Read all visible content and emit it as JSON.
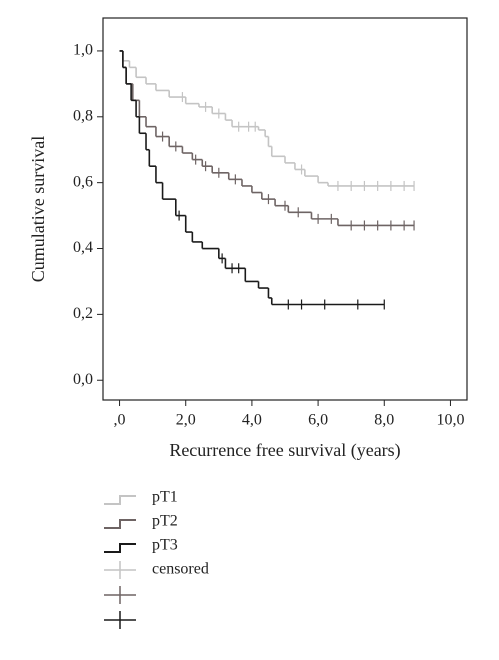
{
  "chart_data": {
    "type": "step",
    "x_label": "Recurrence free survival (years)",
    "y_label": "Cumulative survival",
    "xlim": [
      -0.5,
      10.5
    ],
    "ylim": [
      -0.06,
      1.1
    ],
    "xticks": [
      {
        "value": 0,
        "label": ",0"
      },
      {
        "value": 2,
        "label": "2,0"
      },
      {
        "value": 4,
        "label": "4,0"
      },
      {
        "value": 6,
        "label": "6,0"
      },
      {
        "value": 8,
        "label": "8,0"
      },
      {
        "value": 10,
        "label": "10,0"
      }
    ],
    "yticks": [
      {
        "value": 0,
        "label": "0,0"
      },
      {
        "value": 0.2,
        "label": "0,2"
      },
      {
        "value": 0.4,
        "label": "0,4"
      },
      {
        "value": 0.6,
        "label": "0,6"
      },
      {
        "value": 0.8,
        "label": "0,8"
      },
      {
        "value": 1,
        "label": "1,0"
      }
    ],
    "censored_label": "censored",
    "series": [
      {
        "name": "pT1",
        "color": "#c4c4c4",
        "x": [
          0,
          0.1,
          0.3,
          0.5,
          0.8,
          1.1,
          1.5,
          2.0,
          2.4,
          2.8,
          3.2,
          3.4,
          4.2,
          4.4,
          4.5,
          4.6,
          5.0,
          5.3,
          5.6,
          6.0,
          6.3,
          8.9
        ],
        "values": [
          1.0,
          0.97,
          0.95,
          0.92,
          0.9,
          0.88,
          0.86,
          0.84,
          0.83,
          0.81,
          0.79,
          0.77,
          0.76,
          0.74,
          0.71,
          0.68,
          0.66,
          0.64,
          0.62,
          0.6,
          0.59,
          0.59
        ],
        "censored_x": [
          1.9,
          2.6,
          3.0,
          3.6,
          3.9,
          4.1,
          5.5,
          6.6,
          7.0,
          7.4,
          7.8,
          8.2,
          8.6,
          8.9
        ],
        "censored_y": [
          0.86,
          0.83,
          0.81,
          0.77,
          0.77,
          0.77,
          0.64,
          0.59,
          0.59,
          0.59,
          0.59,
          0.59,
          0.59,
          0.59
        ]
      },
      {
        "name": "pT2",
        "color": "#6e6464",
        "x": [
          0,
          0.1,
          0.2,
          0.4,
          0.6,
          0.8,
          1.1,
          1.5,
          1.9,
          2.2,
          2.5,
          2.8,
          3.3,
          3.7,
          4.0,
          4.3,
          4.7,
          5.1,
          5.8,
          6.6,
          8.9
        ],
        "values": [
          1.0,
          0.95,
          0.9,
          0.85,
          0.8,
          0.77,
          0.74,
          0.71,
          0.69,
          0.67,
          0.65,
          0.63,
          0.61,
          0.59,
          0.57,
          0.55,
          0.53,
          0.51,
          0.49,
          0.47,
          0.47
        ],
        "censored_x": [
          1.3,
          1.7,
          2.3,
          2.6,
          3.0,
          3.5,
          4.5,
          5.0,
          5.4,
          6.0,
          6.4,
          7.0,
          7.4,
          7.8,
          8.2,
          8.6,
          8.9
        ],
        "censored_y": [
          0.74,
          0.71,
          0.67,
          0.65,
          0.63,
          0.61,
          0.55,
          0.53,
          0.51,
          0.49,
          0.49,
          0.47,
          0.47,
          0.47,
          0.47,
          0.47,
          0.47
        ]
      },
      {
        "name": "pT3",
        "color": "#1a1a1a",
        "x": [
          0,
          0.1,
          0.2,
          0.35,
          0.5,
          0.6,
          0.8,
          0.9,
          1.1,
          1.3,
          1.7,
          2.0,
          2.2,
          2.5,
          3.0,
          3.2,
          3.8,
          4.2,
          4.5,
          4.6,
          8.0
        ],
        "values": [
          1.0,
          0.95,
          0.9,
          0.85,
          0.8,
          0.75,
          0.7,
          0.65,
          0.6,
          0.55,
          0.5,
          0.45,
          0.42,
          0.4,
          0.37,
          0.34,
          0.3,
          0.28,
          0.25,
          0.23,
          0.23
        ],
        "censored_x": [
          1.8,
          3.1,
          3.4,
          3.6,
          5.1,
          5.5,
          6.2,
          7.2,
          8.0
        ],
        "censored_y": [
          0.5,
          0.37,
          0.34,
          0.34,
          0.23,
          0.23,
          0.23,
          0.23,
          0.23
        ]
      }
    ]
  }
}
